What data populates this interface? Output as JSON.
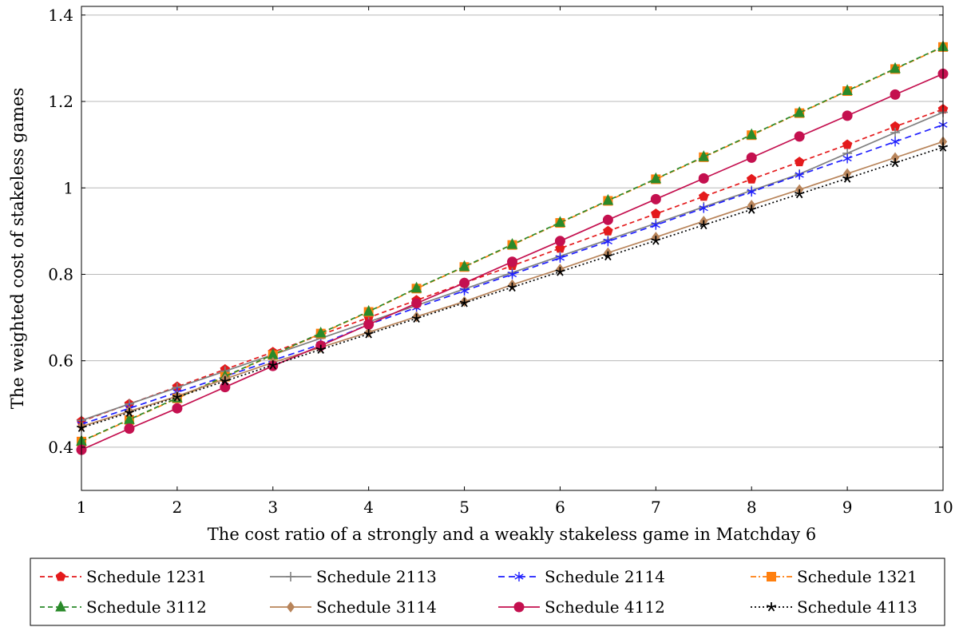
{
  "chart_data": {
    "type": "line",
    "title": "",
    "xlabel": "The cost ratio of a strongly and a weakly stakeless game in Matchday 6",
    "ylabel": "The weighted cost of stakeless games",
    "xlim": [
      1,
      10
    ],
    "ylim": [
      0.3,
      1.42
    ],
    "x_ticks": [
      "1",
      "2",
      "3",
      "4",
      "5",
      "6",
      "7",
      "8",
      "9",
      "10"
    ],
    "y_ticks": [
      "0.4",
      "0.6",
      "0.8",
      "1",
      "1.2",
      "1.4"
    ],
    "grid": "horizontal",
    "legend_position": "bottom",
    "x": [
      1,
      1.5,
      2,
      2.5,
      3,
      3.5,
      4,
      4.5,
      5,
      5.5,
      6,
      6.5,
      7,
      7.5,
      8,
      8.5,
      9,
      9.5,
      10
    ],
    "series": [
      {
        "name": "Schedule 1231",
        "color": "#e41a1c",
        "dash": "6,4",
        "marker": "pentagon",
        "values": [
          0.46,
          0.5,
          0.54,
          0.58,
          0.62,
          0.66,
          0.7,
          0.74,
          0.78,
          0.82,
          0.86,
          0.9,
          0.94,
          0.98,
          1.02,
          1.06,
          1.1,
          1.142,
          1.182
        ]
      },
      {
        "name": "Schedule 2113",
        "color": "#808080",
        "dash": "",
        "marker": "plus",
        "values": [
          0.462,
          0.5,
          0.538,
          0.576,
          0.614,
          0.652,
          0.69,
          0.728,
          0.766,
          0.804,
          0.842,
          0.88,
          0.918,
          0.956,
          0.994,
          1.032,
          1.08,
          1.128,
          1.175
        ]
      },
      {
        "name": "Schedule 2114",
        "color": "#1f1fff",
        "dash": "8,5",
        "marker": "asterisk",
        "values": [
          0.453,
          0.49,
          0.527,
          0.564,
          0.601,
          0.638,
          0.684,
          0.723,
          0.762,
          0.8,
          0.838,
          0.876,
          0.914,
          0.953,
          0.991,
          1.03,
          1.068,
          1.107,
          1.146
        ]
      },
      {
        "name": "Schedule 1321",
        "color": "#ff7f0e",
        "dash": "7,3,2,3",
        "marker": "square",
        "values": [
          0.413,
          0.463,
          0.513,
          0.563,
          0.613,
          0.663,
          0.713,
          0.767,
          0.817,
          0.868,
          0.919,
          0.97,
          1.02,
          1.071,
          1.122,
          1.173,
          1.224,
          1.275,
          1.326
        ]
      },
      {
        "name": "Schedule 3112",
        "color": "#2a8a2a",
        "dash": "6,4",
        "marker": "triangle",
        "values": [
          0.414,
          0.464,
          0.514,
          0.564,
          0.614,
          0.664,
          0.714,
          0.768,
          0.818,
          0.869,
          0.92,
          0.971,
          1.021,
          1.072,
          1.123,
          1.174,
          1.225,
          1.276,
          1.327
        ]
      },
      {
        "name": "Schedule 3114",
        "color": "#b8845a",
        "dash": "",
        "marker": "diamond",
        "values": [
          0.448,
          0.483,
          0.518,
          0.558,
          0.596,
          0.631,
          0.666,
          0.702,
          0.737,
          0.776,
          0.812,
          0.85,
          0.886,
          0.923,
          0.96,
          0.996,
          1.033,
          1.07,
          1.107
        ]
      },
      {
        "name": "Schedule 4112",
        "color": "#c4104f",
        "dash": "",
        "marker": "circle",
        "values": [
          0.394,
          0.443,
          0.49,
          0.539,
          0.588,
          0.635,
          0.684,
          0.733,
          0.78,
          0.829,
          0.877,
          0.926,
          0.974,
          1.022,
          1.07,
          1.119,
          1.167,
          1.216,
          1.264
        ]
      },
      {
        "name": "Schedule 4113",
        "color": "#000000",
        "dash": "2,3",
        "marker": "star",
        "values": [
          0.445,
          0.48,
          0.516,
          0.553,
          0.59,
          0.626,
          0.662,
          0.698,
          0.734,
          0.77,
          0.806,
          0.842,
          0.878,
          0.914,
          0.95,
          0.986,
          1.022,
          1.058,
          1.094
        ]
      }
    ]
  }
}
